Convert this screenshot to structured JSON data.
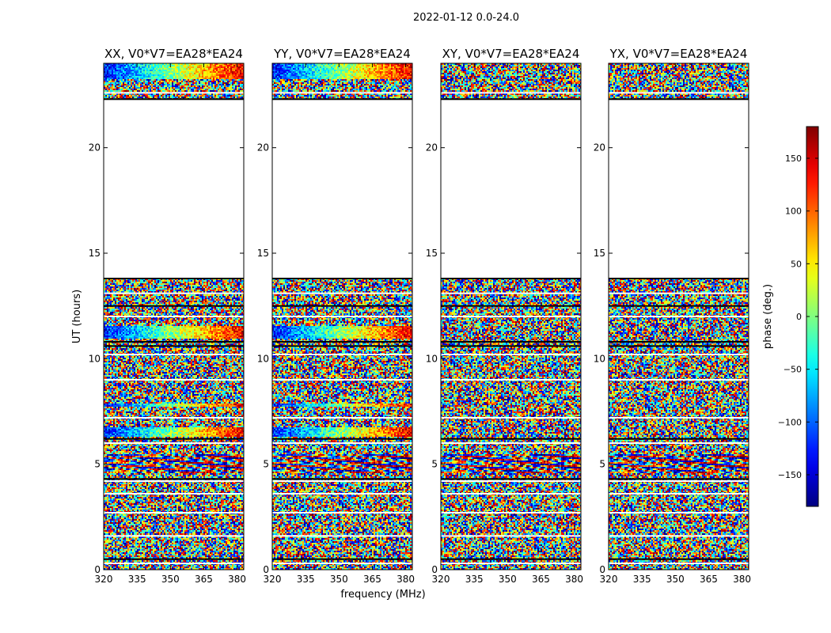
{
  "figure": {
    "suptitle": "2022-01-12 0.0-24.0",
    "xlabel": "frequency (MHz)",
    "ylabel": "UT (hours)",
    "colorbar_label": "phase (deg.)",
    "colorbar_ticks": [
      150,
      100,
      50,
      0,
      -50,
      -100,
      -150
    ],
    "colorbar_tick_labels": [
      "150",
      "100",
      "50",
      "0",
      "−50",
      "−100",
      "−150"
    ],
    "colorbar_range": [
      -180,
      180
    ]
  },
  "chart_data": [
    {
      "type": "heatmap",
      "title": "XX, V0*V7=EA28*EA24",
      "xlabel": "frequency (MHz)",
      "ylabel": "UT (hours)",
      "xlim": [
        320,
        383
      ],
      "ylim": [
        0,
        24
      ],
      "xticks": [
        320,
        335,
        350,
        365,
        380
      ],
      "yticks": [
        0,
        5,
        10,
        15,
        20
      ],
      "zlabel": "phase (deg.)",
      "zlim": [
        -180,
        180
      ],
      "data_blocks_hours": [
        [
          0.0,
          13.8
        ],
        [
          22.3,
          24.0
        ]
      ],
      "coherent_phase_bands_hours": [
        [
          6.3,
          6.8
        ],
        [
          7.8,
          7.9
        ],
        [
          11.0,
          11.6
        ],
        [
          23.3,
          24.0
        ]
      ],
      "fringe_pattern_hours": [
        4.6,
        5.5
      ]
    },
    {
      "type": "heatmap",
      "title": "YY, V0*V7=EA28*EA24",
      "xlabel": "frequency (MHz)",
      "ylabel": "UT (hours)",
      "xlim": [
        320,
        383
      ],
      "ylim": [
        0,
        24
      ],
      "xticks": [
        320,
        335,
        350,
        365,
        380
      ],
      "yticks": [
        0,
        5,
        10,
        15,
        20
      ],
      "zlabel": "phase (deg.)",
      "zlim": [
        -180,
        180
      ],
      "data_blocks_hours": [
        [
          0.0,
          13.8
        ],
        [
          22.3,
          24.0
        ]
      ],
      "coherent_phase_bands_hours": [
        [
          6.3,
          6.8
        ],
        [
          7.8,
          7.9
        ],
        [
          11.0,
          11.6
        ],
        [
          23.3,
          24.0
        ]
      ],
      "fringe_pattern_hours": [
        4.6,
        5.5
      ]
    },
    {
      "type": "heatmap",
      "title": "XY, V0*V7=EA28*EA24",
      "xlabel": "frequency (MHz)",
      "ylabel": "UT (hours)",
      "xlim": [
        320,
        383
      ],
      "ylim": [
        0,
        24
      ],
      "xticks": [
        320,
        335,
        350,
        365,
        380
      ],
      "yticks": [
        0,
        5,
        10,
        15,
        20
      ],
      "zlabel": "phase (deg.)",
      "zlim": [
        -180,
        180
      ],
      "data_blocks_hours": [
        [
          0.0,
          13.8
        ],
        [
          22.3,
          24.0
        ]
      ],
      "coherent_phase_bands_hours": [],
      "fringe_pattern_hours": [
        4.6,
        5.5
      ]
    },
    {
      "type": "heatmap",
      "title": "YX, V0*V7=EA28*EA24",
      "xlabel": "frequency (MHz)",
      "ylabel": "UT (hours)",
      "xlim": [
        320,
        383
      ],
      "ylim": [
        0,
        24
      ],
      "xticks": [
        320,
        335,
        350,
        365,
        380
      ],
      "yticks": [
        0,
        5,
        10,
        15,
        20
      ],
      "zlabel": "phase (deg.)",
      "zlim": [
        -180,
        180
      ],
      "data_blocks_hours": [
        [
          0.0,
          13.8
        ],
        [
          22.3,
          24.0
        ]
      ],
      "coherent_phase_bands_hours": [],
      "fringe_pattern_hours": [
        4.6,
        5.5
      ]
    }
  ]
}
